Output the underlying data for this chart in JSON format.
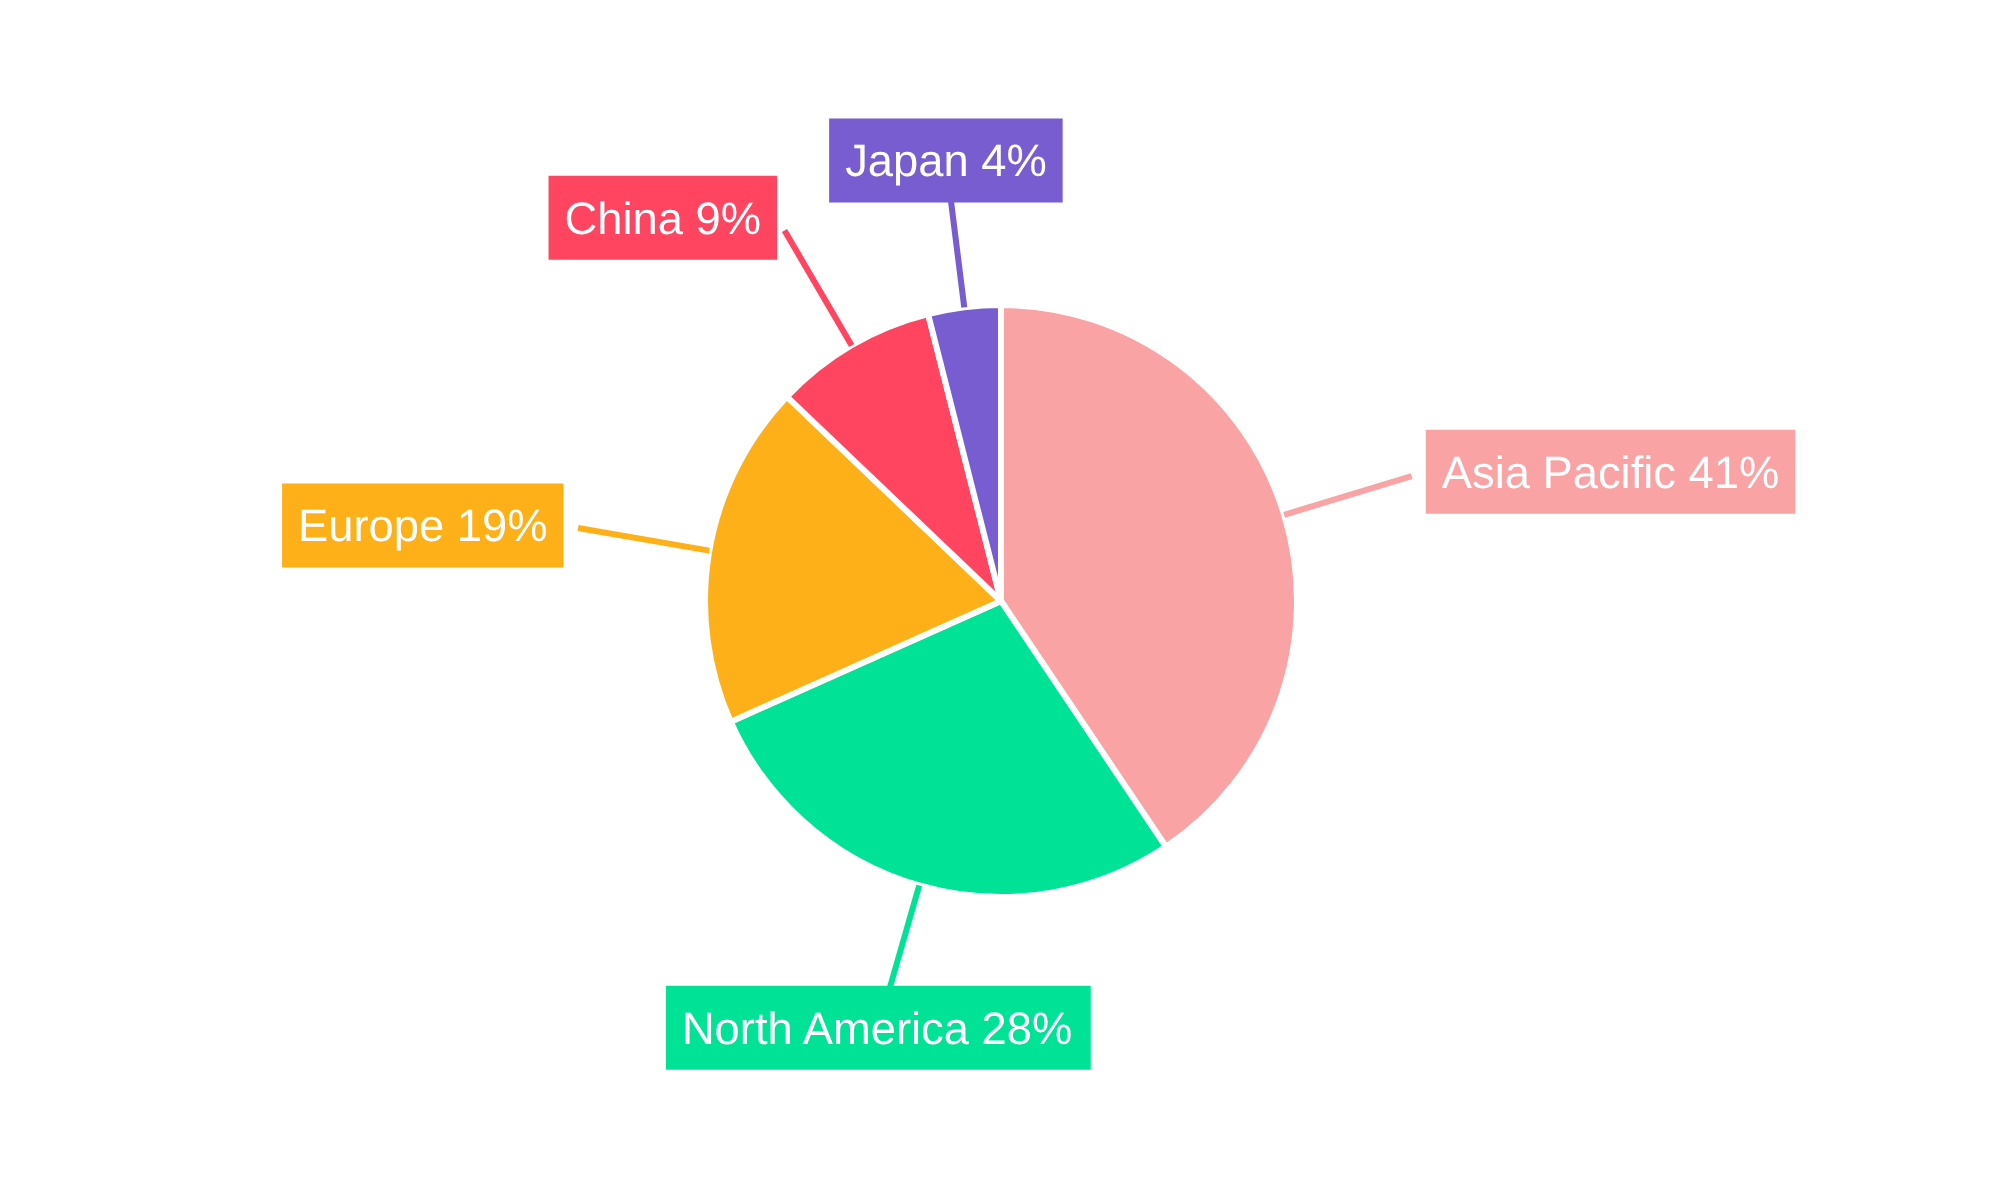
{
  "chart_data": {
    "type": "pie",
    "categories": [
      "Asia Pacific",
      "North America",
      "Europe",
      "China",
      "Japan"
    ],
    "values": [
      41,
      28,
      19,
      9,
      4
    ],
    "value_labels": [
      "41%",
      "28%",
      "19%",
      "9%",
      "4%"
    ],
    "colors": [
      "#f9a3a4",
      "#00e396",
      "#feb019",
      "#ff4560",
      "#775dd0"
    ]
  }
}
